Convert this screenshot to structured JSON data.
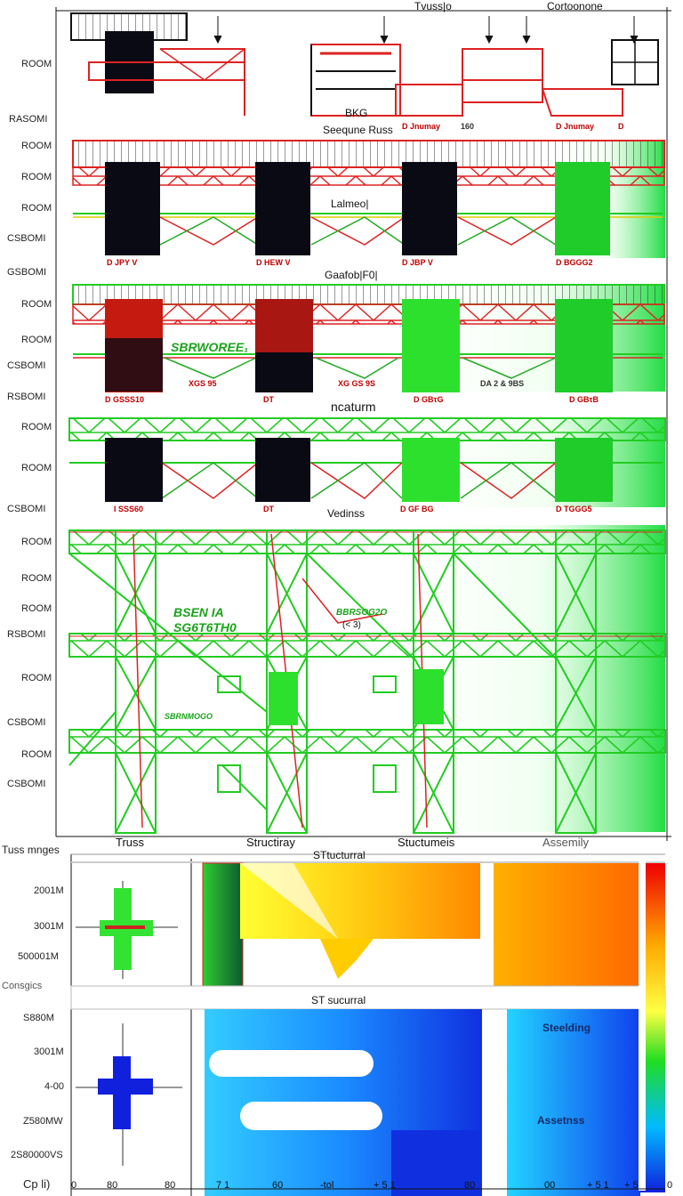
{
  "top_headers": {
    "trusses": "Tvuss|o",
    "components": "Cortoonone"
  },
  "rows_left_labels": [
    "ROOM",
    "RASOMI",
    "ROOM",
    "ROOM",
    "ROOM",
    "CSBOMI",
    "GSBOMI",
    "ROOM",
    "ROOM",
    "CSBOMI",
    "RSBOMI",
    "ROOM",
    "ROOM",
    "CSBOMI",
    "ROOM",
    "ROOM",
    "ROOM",
    "RSBOMI",
    "ROOM",
    "CSBOMI",
    "ROOM",
    "CSBOMI"
  ],
  "section_titles": {
    "s1_bkg": "BKG",
    "s1_title": "Seequne Russ",
    "s2_title": "Lalmeo|",
    "s3_title": "Gaafob|F0|",
    "s4_title": "ncaturm",
    "s5_title": "Vedinss"
  },
  "s1_tags": {
    "t1": "160",
    "t2": "D Jnumay",
    "t3": "D Jnumay",
    "t4": "D"
  },
  "s2_tags": {
    "a": "D JPY  V",
    "b": "D HEW  V",
    "c": "D JBP  V",
    "d": "D BGGG2"
  },
  "s3_green_label": "SBRWOREE₁",
  "s3_tags": {
    "a": "D GSSS10",
    "b": "XGS 95",
    "c": "DT",
    "d": "XG GS 9S",
    "e": "D GBτG",
    "f": "DA 2 & 9BS",
    "g": "D GBτB"
  },
  "s4_tags": {
    "a": "I SSS60",
    "b": "DT",
    "c": "D  GF   BG",
    "d": "D TGGG5"
  },
  "s5_green_labels": {
    "l1": "BSEN  IA",
    "l2": "SG6T6TH0",
    "l3": "SBRNMOGO",
    "l4": "BBRSOG2O",
    "l5": "(< 3)"
  },
  "bottom": {
    "col_headers": [
      "Truss",
      "Structiray",
      "Stuctumeis",
      "Assemily"
    ],
    "left_label": "Tuss mnges",
    "panel1_title": "STtucturral",
    "panel2_title": "ST sucurral",
    "row_labels_top": [
      "2001M",
      "3001M",
      "500001M"
    ],
    "consgics": "Consgics",
    "row_labels_bottom": [
      "S880M",
      "3001M",
      "4-00",
      "Z580MW",
      "2S80000VS"
    ],
    "blue_labels": {
      "top": "Steelding",
      "bottom": "Assetnss"
    },
    "x_axis_label": "Cp li)",
    "x_ticks": [
      "0",
      "80",
      "80",
      "7 1",
      "60",
      "-tol",
      "+ 5 1",
      "80",
      "00",
      "+ 5 1",
      "+ 5",
      "0"
    ]
  },
  "colors": {
    "red": "#e01010",
    "green": "#22dd22",
    "black": "#0a0a14"
  }
}
